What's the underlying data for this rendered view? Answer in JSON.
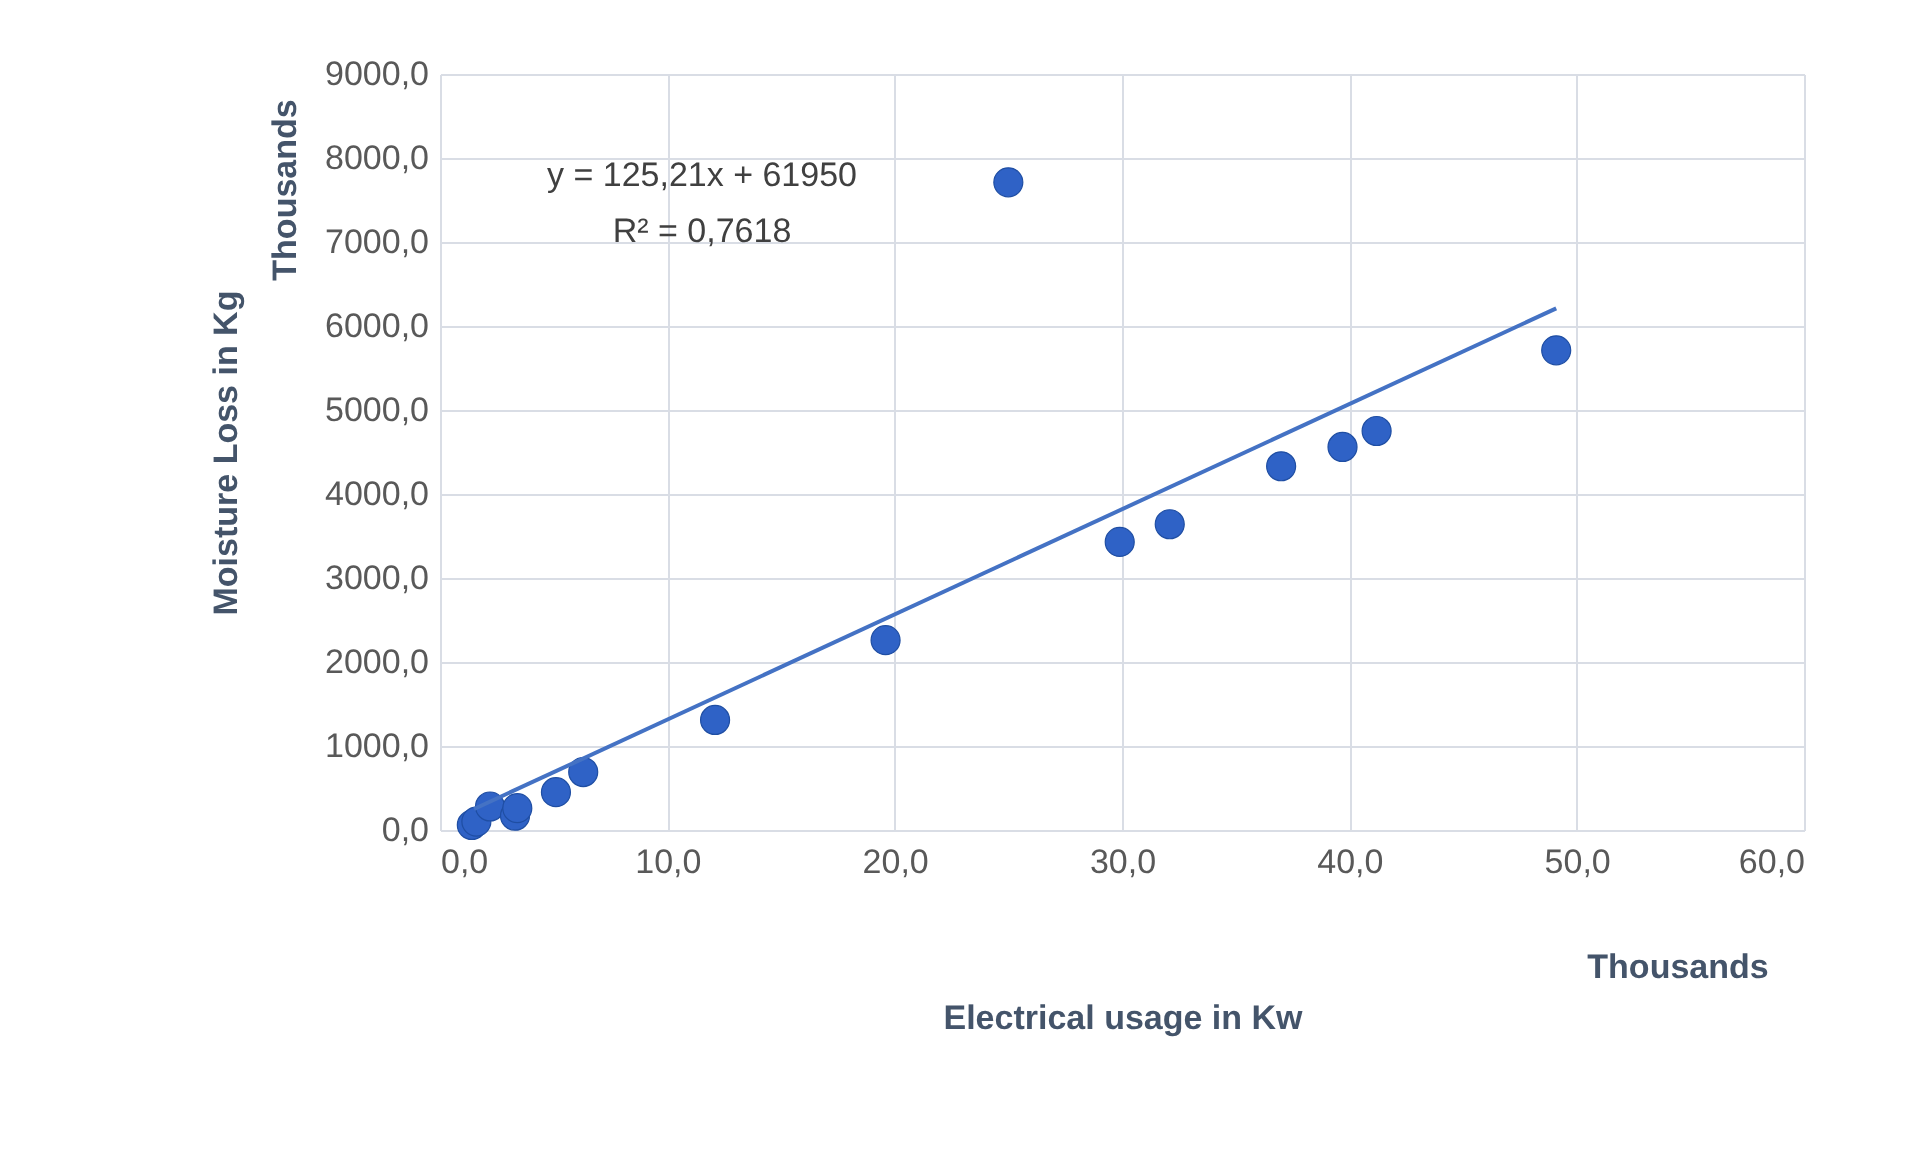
{
  "chart_data": {
    "type": "scatter",
    "xlabel": "Electrical usage in Kw",
    "ylabel": "Moisture Loss in Kg",
    "xlim": [
      0,
      60
    ],
    "xticks": [
      {
        "value": 0,
        "label": "0,0"
      },
      {
        "value": 10,
        "label": "10,0"
      },
      {
        "value": 20,
        "label": "20,0"
      },
      {
        "value": 30,
        "label": "30,0"
      },
      {
        "value": 40,
        "label": "40,0"
      },
      {
        "value": 50,
        "label": "50,0"
      },
      {
        "value": 60,
        "label": "60,0"
      }
    ],
    "ylim": [
      0,
      9000
    ],
    "yticks": [
      {
        "value": 0,
        "label": "0,0"
      },
      {
        "value": 1000,
        "label": "1000,0"
      },
      {
        "value": 2000,
        "label": "2000,0"
      },
      {
        "value": 3000,
        "label": "3000,0"
      },
      {
        "value": 4000,
        "label": "4000,0"
      },
      {
        "value": 5000,
        "label": "5000,0"
      },
      {
        "value": 6000,
        "label": "6000,0"
      },
      {
        "value": 7000,
        "label": "7000,0"
      },
      {
        "value": 8000,
        "label": "8000,0"
      },
      {
        "value": 9000,
        "label": "9000,0"
      }
    ],
    "grid": true,
    "marker": "circle",
    "series": [
      {
        "color": "#2f62c6",
        "x": [
          1.4,
          1.6,
          2.2,
          3.3,
          3.4,
          5.1,
          6.3,
          12.1,
          19.6,
          25.0,
          29.9,
          32.1,
          37.0,
          39.7,
          41.2,
          49.1
        ],
        "values": [
          60,
          100,
          280,
          170,
          260,
          450,
          690,
          1310,
          2260,
          7710,
          3430,
          3640,
          4330,
          4560,
          4750,
          5710
        ]
      },
      {
        "type": "line",
        "marker": "none",
        "color": "#4472c4",
        "x": [
          1.5,
          49.1
        ],
        "values": [
          250,
          6210
        ]
      }
    ],
    "annotations": [
      "y = 125,21x + 61950",
      "R² = 0,7618",
      "Thousands",
      "Thousands"
    ]
  }
}
